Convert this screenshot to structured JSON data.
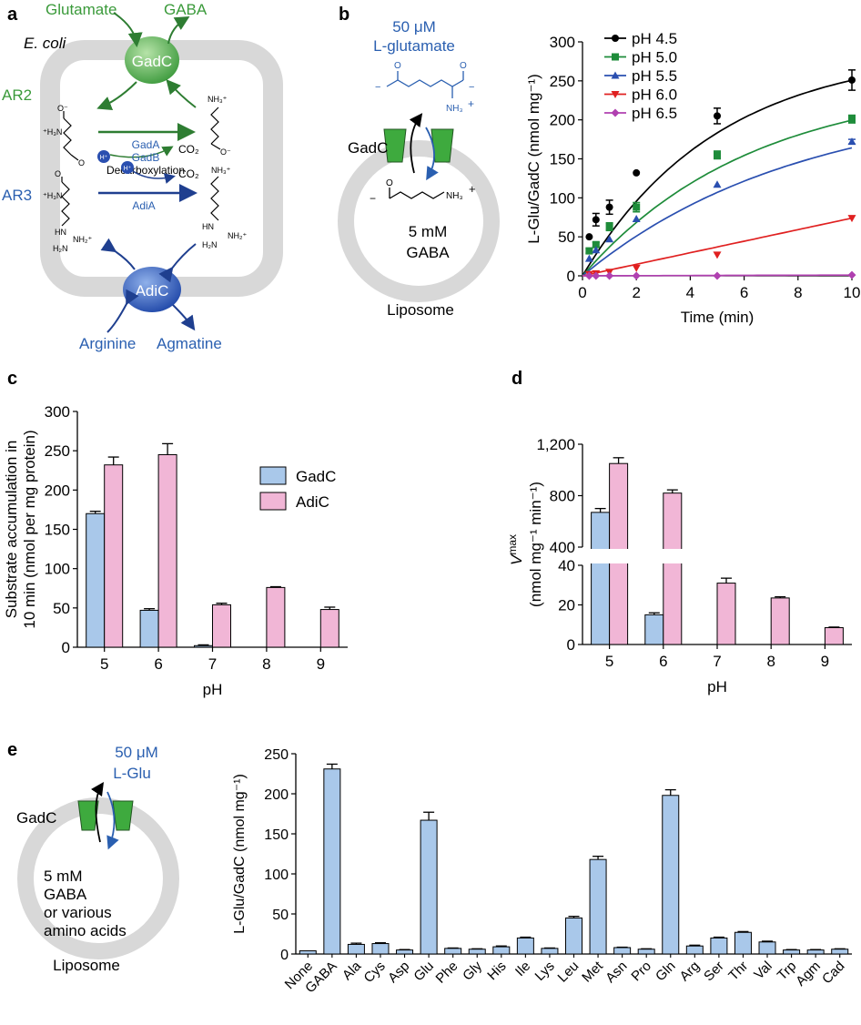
{
  "colors": {
    "green": "#3a9a3a",
    "blue": "#2a5fb0",
    "gadc_bar": "#a9c8ea",
    "adic_bar": "#f1b6d6",
    "membrane": "#d8d8d8",
    "ph45": "#000000",
    "ph50": "#1e8c3a",
    "ph55": "#2a4fb0",
    "ph60": "#e02020",
    "ph65": "#b040b0"
  },
  "panel_a": {
    "letter": "a",
    "glutamate": "Glutamate",
    "gaba": "GABA",
    "ecoli": "E. coli",
    "gadc": "GadC",
    "ar2": "AR2",
    "ar3": "AR3",
    "gada": "GadA",
    "gadb": "GadB",
    "decarboxylation": "Decarboxylation",
    "adia": "AdiA",
    "co2": "CO₂",
    "h": "H⁺",
    "adic": "AdiC",
    "arginine": "Arginine",
    "agmatine": "Agmatine",
    "nh3": "NH₃⁺",
    "nh2": "NH₂⁺",
    "minus_o": "O⁻",
    "o": "O",
    "nh": "HN",
    "h2n": "H₂N",
    "h3n": "⁺H₃N"
  },
  "panel_b": {
    "letter": "b",
    "conc": "50 μM",
    "substrate": "L-glutamate",
    "gadc": "GadC",
    "inside_conc": "5 mM",
    "inside": "GABA",
    "liposome": "Liposome",
    "nh3": "NH₃",
    "plus": "+",
    "minus": "−",
    "o": "O"
  },
  "panel_e_diagram": {
    "letter": "e",
    "conc": "50 μM",
    "substrate": "L-Glu",
    "gadc": "GadC",
    "inside_1": "5 mM",
    "inside_2": "GABA",
    "inside_3": "or various",
    "inside_4": "amino acids",
    "liposome": "Liposome"
  },
  "panel_c_letter": "c",
  "panel_d_letter": "d",
  "chart_data": [
    {
      "panel": "b",
      "type": "scatter",
      "xlabel": "Time (min)",
      "ylabel": "L-Glu/GadC (nmol mg⁻¹)",
      "xlim": [
        0,
        10
      ],
      "ylim": [
        0,
        300
      ],
      "xticks": [
        0,
        2,
        4,
        6,
        8,
        10
      ],
      "yticks": [
        0,
        50,
        100,
        150,
        200,
        250,
        300
      ],
      "legend": "top-left",
      "series": [
        {
          "name": "pH 4.5",
          "color": "#000000",
          "marker": "circle",
          "x": [
            0.25,
            0.5,
            1,
            2,
            5,
            10
          ],
          "y": [
            50,
            72,
            88,
            132,
            205,
            251
          ],
          "err": [
            0,
            8,
            9,
            0,
            10,
            13
          ],
          "fit": [
            0,
            90,
            150,
            195,
            222,
            238,
            246,
            251
          ]
        },
        {
          "name": "pH 5.0",
          "color": "#1e8c3a",
          "marker": "square",
          "x": [
            0.25,
            0.5,
            1,
            2,
            5,
            10
          ],
          "y": [
            32,
            40,
            63,
            88,
            155,
            201
          ],
          "err": [
            3,
            3,
            5,
            6,
            5,
            5
          ]
        },
        {
          "name": "pH 5.5",
          "color": "#2a4fb0",
          "marker": "triangle-up",
          "x": [
            0.25,
            0.5,
            1,
            2,
            5,
            10
          ],
          "y": [
            22,
            33,
            47,
            73,
            117,
            172
          ],
          "err": [
            0,
            0,
            0,
            0,
            0,
            3
          ]
        },
        {
          "name": "pH 6.0",
          "color": "#e02020",
          "marker": "triangle-down",
          "x": [
            0.25,
            0.5,
            1,
            2,
            5,
            10
          ],
          "y": [
            2,
            3,
            5,
            10,
            27,
            74
          ],
          "err": [
            0,
            0,
            0,
            0,
            0,
            0
          ]
        },
        {
          "name": "pH 6.5",
          "color": "#b040b0",
          "marker": "diamond",
          "x": [
            0.25,
            0.5,
            1,
            2,
            5,
            10
          ],
          "y": [
            0,
            0,
            0,
            0,
            0,
            1
          ],
          "err": [
            0,
            0,
            0,
            0,
            0,
            0
          ]
        }
      ],
      "fits": [
        {
          "series": "pH 4.5",
          "vmax": 290,
          "k": 0.2
        },
        {
          "series": "pH 5.0",
          "vmax": 250,
          "k": 0.16
        },
        {
          "series": "pH 5.5",
          "vmax": 230,
          "k": 0.125
        },
        {
          "series": "pH 6.0",
          "vmax": 0,
          "k": 7.4,
          "linear": true
        },
        {
          "series": "pH 6.5",
          "vmax": 0,
          "k": 0.1,
          "linear": true
        }
      ]
    },
    {
      "panel": "c",
      "type": "bar",
      "xlabel": "pH",
      "ylabel_1": "Substrate accumulation in",
      "ylabel_2": "10 min (nmol per mg protein)",
      "categories": [
        "5",
        "6",
        "7",
        "8",
        "9"
      ],
      "ylim": [
        0,
        300
      ],
      "yticks": [
        0,
        50,
        100,
        150,
        200,
        250,
        300
      ],
      "legend": "top-right",
      "series": [
        {
          "name": "GadC",
          "color": "#a9c8ea",
          "values": [
            170,
            47,
            2,
            0,
            0
          ],
          "err": [
            3,
            2,
            1,
            0,
            0
          ]
        },
        {
          "name": "AdiC",
          "color": "#f1b6d6",
          "values": [
            232,
            245,
            54,
            76,
            48
          ],
          "err": [
            10,
            14,
            2,
            1,
            3
          ]
        }
      ]
    },
    {
      "panel": "d",
      "type": "bar",
      "xlabel": "pH",
      "ylabel_sym": "V",
      "ylabel_sub": "max",
      "ylabel_2": "(nmol mg⁻¹ min⁻¹)",
      "categories": [
        "5",
        "6",
        "7",
        "8",
        "9"
      ],
      "axis_break": true,
      "lower_ylim": [
        0,
        40
      ],
      "upper_ylim": [
        400,
        1200
      ],
      "lower_yticks": [
        "0",
        "20",
        "40"
      ],
      "upper_yticks": [
        "400",
        "800",
        "1,200"
      ],
      "series": [
        {
          "name": "GadC",
          "color": "#a9c8ea",
          "values": [
            670,
            15,
            0,
            0,
            0
          ],
          "err": [
            30,
            1,
            0,
            0,
            0
          ]
        },
        {
          "name": "AdiC",
          "color": "#f1b6d6",
          "values": [
            1050,
            820,
            31,
            23.5,
            8.5
          ],
          "err": [
            45,
            25,
            2.5,
            0.6,
            0.3
          ]
        }
      ]
    },
    {
      "panel": "e",
      "type": "bar",
      "ylabel": "L-Glu/GadC (nmol mg⁻¹)",
      "ylim": [
        0,
        250
      ],
      "yticks": [
        0,
        50,
        100,
        150,
        200,
        250
      ],
      "categories": [
        "None",
        "GABA",
        "Ala",
        "Cys",
        "Asp",
        "Glu",
        "Phe",
        "Gly",
        "His",
        "Ile",
        "Lys",
        "Leu",
        "Met",
        "Asn",
        "Pro",
        "Gln",
        "Arg",
        "Ser",
        "Thr",
        "Val",
        "Trp",
        "Agm",
        "Cad"
      ],
      "series": [
        {
          "name": "",
          "color": "#a9c8ea",
          "values": [
            4,
            231,
            12,
            13,
            5,
            167,
            7,
            6,
            9,
            20,
            7,
            45,
            118,
            8,
            6,
            198,
            10,
            20,
            27,
            15,
            5,
            5,
            6
          ],
          "err": [
            0,
            6,
            1.5,
            1,
            0.5,
            10,
            0.5,
            0.5,
            1,
            1,
            0.5,
            2,
            4,
            0.5,
            0.5,
            7,
            1,
            1,
            1,
            1,
            0.5,
            0.5,
            0.5
          ]
        }
      ]
    }
  ]
}
